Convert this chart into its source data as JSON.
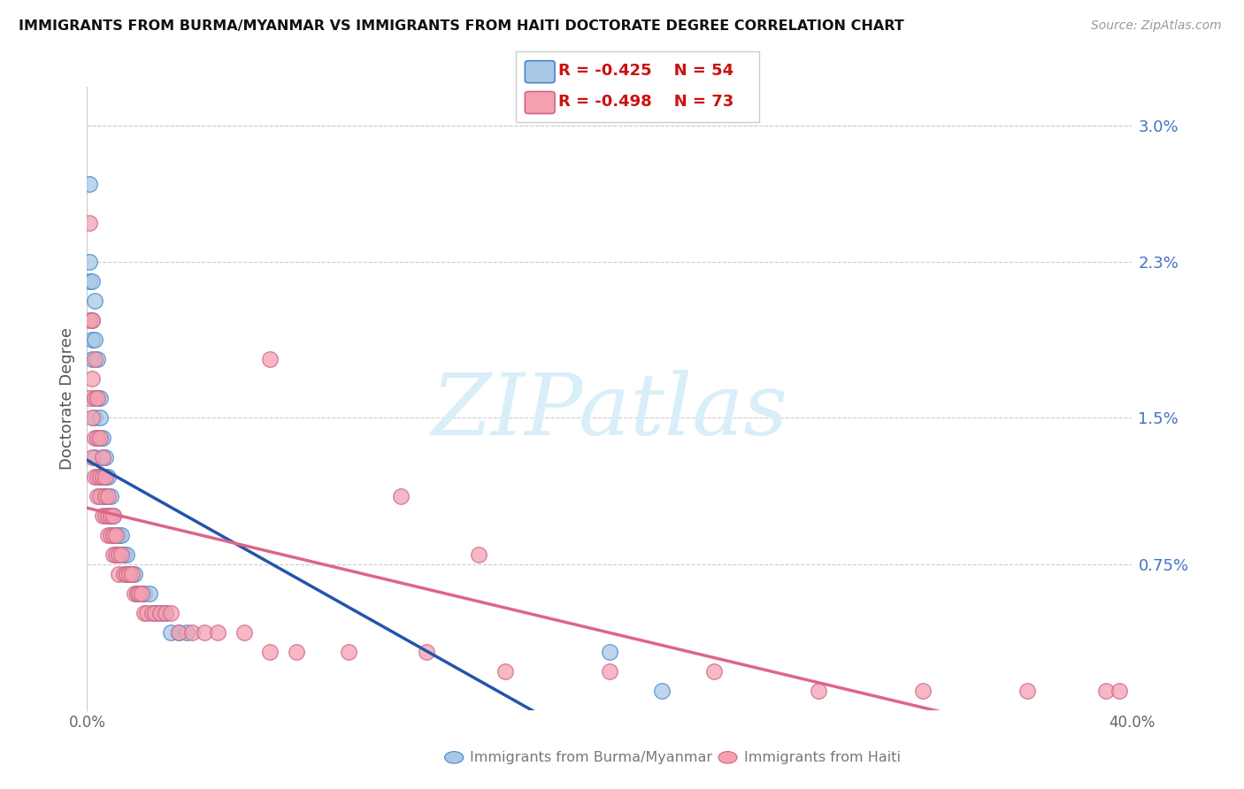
{
  "title": "IMMIGRANTS FROM BURMA/MYANMAR VS IMMIGRANTS FROM HAITI DOCTORATE DEGREE CORRELATION CHART",
  "source": "Source: ZipAtlas.com",
  "ylabel": "Doctorate Degree",
  "legend_r1": "R = -0.425",
  "legend_n1": "N = 54",
  "legend_r2": "R = -0.498",
  "legend_n2": "N = 73",
  "color_burma": "#a8c8e8",
  "color_haiti": "#f4a0b0",
  "color_burma_edge": "#4488cc",
  "color_haiti_edge": "#cc6688",
  "color_burma_line": "#2255aa",
  "color_haiti_line": "#dd6688",
  "color_right_axis": "#4472c4",
  "color_grid": "#cccccc",
  "xlim": [
    0.0,
    0.4
  ],
  "ylim": [
    0.0,
    0.032
  ],
  "right_yticks": [
    0.0075,
    0.015,
    0.023,
    0.03
  ],
  "right_ytick_labels": [
    "0.75%",
    "1.5%",
    "2.3%",
    "3.0%"
  ],
  "watermark": "ZIPatlas",
  "burma_x": [
    0.001,
    0.001,
    0.001,
    0.002,
    0.002,
    0.002,
    0.002,
    0.003,
    0.003,
    0.003,
    0.003,
    0.003,
    0.004,
    0.004,
    0.004,
    0.005,
    0.005,
    0.005,
    0.005,
    0.006,
    0.006,
    0.006,
    0.007,
    0.007,
    0.007,
    0.008,
    0.008,
    0.009,
    0.009,
    0.01,
    0.01,
    0.011,
    0.012,
    0.012,
    0.013,
    0.013,
    0.014,
    0.015,
    0.016,
    0.017,
    0.018,
    0.019,
    0.02,
    0.021,
    0.022,
    0.024,
    0.026,
    0.028,
    0.03,
    0.032,
    0.035,
    0.038,
    0.2,
    0.22
  ],
  "burma_y": [
    0.027,
    0.023,
    0.022,
    0.022,
    0.02,
    0.019,
    0.018,
    0.021,
    0.019,
    0.016,
    0.015,
    0.013,
    0.018,
    0.016,
    0.014,
    0.016,
    0.015,
    0.014,
    0.012,
    0.014,
    0.013,
    0.011,
    0.013,
    0.012,
    0.011,
    0.012,
    0.01,
    0.011,
    0.01,
    0.01,
    0.009,
    0.009,
    0.009,
    0.008,
    0.009,
    0.008,
    0.008,
    0.008,
    0.007,
    0.007,
    0.007,
    0.006,
    0.006,
    0.006,
    0.006,
    0.006,
    0.005,
    0.005,
    0.005,
    0.004,
    0.004,
    0.004,
    0.003,
    0.001
  ],
  "haiti_x": [
    0.001,
    0.001,
    0.001,
    0.002,
    0.002,
    0.002,
    0.002,
    0.003,
    0.003,
    0.003,
    0.003,
    0.004,
    0.004,
    0.004,
    0.004,
    0.005,
    0.005,
    0.005,
    0.006,
    0.006,
    0.006,
    0.007,
    0.007,
    0.007,
    0.008,
    0.008,
    0.008,
    0.009,
    0.009,
    0.01,
    0.01,
    0.01,
    0.011,
    0.011,
    0.012,
    0.012,
    0.013,
    0.014,
    0.015,
    0.015,
    0.016,
    0.017,
    0.018,
    0.019,
    0.02,
    0.021,
    0.022,
    0.023,
    0.025,
    0.026,
    0.028,
    0.03,
    0.032,
    0.035,
    0.04,
    0.045,
    0.05,
    0.06,
    0.07,
    0.08,
    0.1,
    0.13,
    0.16,
    0.2,
    0.24,
    0.28,
    0.32,
    0.36,
    0.39,
    0.395,
    0.07,
    0.12,
    0.15
  ],
  "haiti_y": [
    0.025,
    0.02,
    0.016,
    0.02,
    0.017,
    0.015,
    0.013,
    0.018,
    0.016,
    0.014,
    0.012,
    0.016,
    0.014,
    0.012,
    0.011,
    0.014,
    0.012,
    0.011,
    0.013,
    0.012,
    0.01,
    0.012,
    0.011,
    0.01,
    0.011,
    0.01,
    0.009,
    0.01,
    0.009,
    0.01,
    0.009,
    0.008,
    0.009,
    0.008,
    0.008,
    0.007,
    0.008,
    0.007,
    0.007,
    0.007,
    0.007,
    0.007,
    0.006,
    0.006,
    0.006,
    0.006,
    0.005,
    0.005,
    0.005,
    0.005,
    0.005,
    0.005,
    0.005,
    0.004,
    0.004,
    0.004,
    0.004,
    0.004,
    0.003,
    0.003,
    0.003,
    0.003,
    0.002,
    0.002,
    0.002,
    0.001,
    0.001,
    0.001,
    0.001,
    0.001,
    0.018,
    0.011,
    0.008
  ]
}
